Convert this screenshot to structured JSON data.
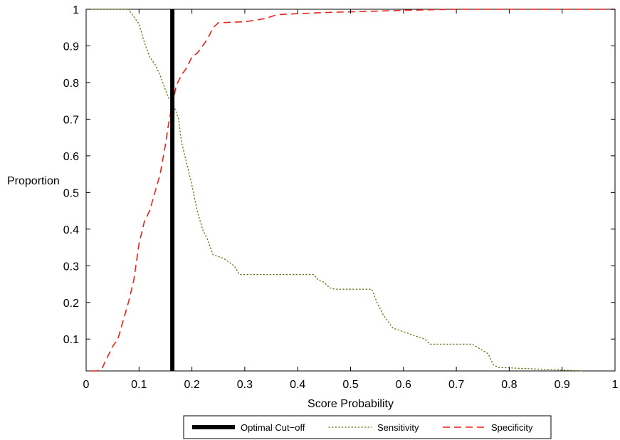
{
  "chart_data": {
    "type": "line",
    "title": "",
    "xlabel": "Score Probability",
    "ylabel": "Proportion",
    "xlim": [
      0,
      1
    ],
    "ylim": [
      0.013,
      1
    ],
    "xticks": [
      0,
      0.1,
      0.2,
      0.3,
      0.4,
      0.5,
      0.6,
      0.7,
      0.8,
      0.9,
      1
    ],
    "xtick_labels": [
      "0",
      "0.1",
      "0.2",
      "0.3",
      "0.4",
      "0.5",
      "0.6",
      "0.7",
      "0.8",
      "0.9",
      "1"
    ],
    "yticks": [
      0.1,
      0.2,
      0.3,
      0.4,
      0.5,
      0.6,
      0.7,
      0.8,
      0.9,
      1
    ],
    "ytick_labels": [
      "0.1",
      "0.2",
      "0.3",
      "0.4",
      "0.5",
      "0.6",
      "0.7",
      "0.8",
      "0.9",
      "1"
    ],
    "grid": false,
    "legend_position": "bottom-center",
    "series": [
      {
        "name": "Optimal Cut−off",
        "style": "solid-thick",
        "color": "#000000",
        "x": [
          0.163,
          0.163
        ],
        "y": [
          0.013,
          1
        ]
      },
      {
        "name": "Sensitivity",
        "style": "dotted",
        "color": "#6b6b10",
        "x": [
          0.005,
          0.08,
          0.1,
          0.11,
          0.12,
          0.13,
          0.14,
          0.15,
          0.155,
          0.165,
          0.175,
          0.18,
          0.19,
          0.2,
          0.21,
          0.22,
          0.23,
          0.24,
          0.26,
          0.28,
          0.29,
          0.43,
          0.44,
          0.45,
          0.46,
          0.47,
          0.54,
          0.55,
          0.56,
          0.58,
          0.6,
          0.62,
          0.64,
          0.65,
          0.73,
          0.76,
          0.77,
          0.78,
          0.79,
          0.94
        ],
        "y": [
          1,
          1,
          0.96,
          0.91,
          0.87,
          0.85,
          0.82,
          0.78,
          0.76,
          0.74,
          0.7,
          0.64,
          0.58,
          0.52,
          0.45,
          0.4,
          0.37,
          0.33,
          0.32,
          0.3,
          0.276,
          0.276,
          0.26,
          0.255,
          0.24,
          0.236,
          0.236,
          0.2,
          0.17,
          0.13,
          0.12,
          0.11,
          0.1,
          0.086,
          0.086,
          0.06,
          0.03,
          0.022,
          0.022,
          0.013
        ]
      },
      {
        "name": "Specificity",
        "style": "dashed",
        "color": "#e8241a",
        "x": [
          0.01,
          0.02,
          0.03,
          0.04,
          0.05,
          0.06,
          0.07,
          0.08,
          0.09,
          0.1,
          0.11,
          0.12,
          0.13,
          0.14,
          0.15,
          0.155,
          0.16,
          0.165,
          0.17,
          0.18,
          0.19,
          0.2,
          0.21,
          0.22,
          0.23,
          0.24,
          0.25,
          0.3,
          0.32,
          0.34,
          0.36,
          0.4,
          0.45,
          0.5,
          0.6,
          0.7,
          0.8,
          1.0
        ],
        "y": [
          0.013,
          0.013,
          0.02,
          0.05,
          0.08,
          0.1,
          0.15,
          0.2,
          0.26,
          0.36,
          0.42,
          0.45,
          0.5,
          0.55,
          0.63,
          0.68,
          0.72,
          0.75,
          0.79,
          0.82,
          0.84,
          0.87,
          0.88,
          0.9,
          0.92,
          0.95,
          0.963,
          0.966,
          0.97,
          0.975,
          0.985,
          0.988,
          0.991,
          0.993,
          0.997,
          1,
          1,
          1
        ]
      }
    ]
  }
}
